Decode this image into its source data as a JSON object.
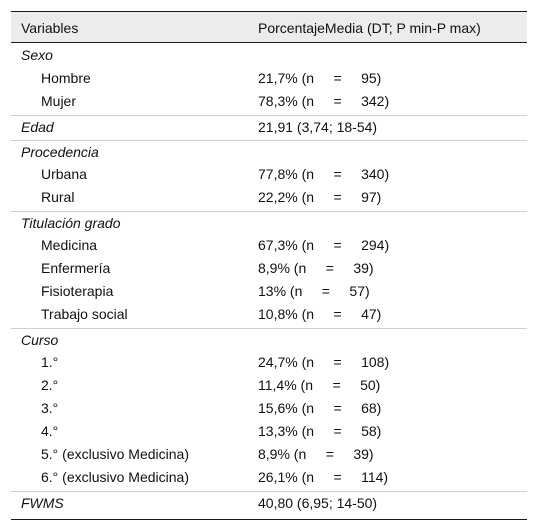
{
  "header": {
    "col1": "Variables",
    "col2": "PorcentajeMedia (DT; P min-P max)"
  },
  "rows": [
    {
      "label": "Sexo",
      "value": ""
    },
    {
      "label": "Hombre",
      "value": "21,7% (n     =     95)"
    },
    {
      "label": "Mujer",
      "value": "78,3% (n     =     342)"
    },
    {
      "label": "Edad",
      "value": "21,91 (3,74; 18-54)"
    },
    {
      "label": "Procedencia",
      "value": ""
    },
    {
      "label": "Urbana",
      "value": "77,8% (n     =     340)"
    },
    {
      "label": "Rural",
      "value": "22,2% (n     =     97)"
    },
    {
      "label": "Titulación grado",
      "value": ""
    },
    {
      "label": "Medicina",
      "value": "67,3% (n     =     294)"
    },
    {
      "label": "Enfermería",
      "value": "8,9% (n     =     39)"
    },
    {
      "label": "Fisioterapia",
      "value": "13% (n     =     57)"
    },
    {
      "label": "Trabajo social",
      "value": "10,8% (n     =     47)"
    },
    {
      "label": "Curso",
      "value": ""
    },
    {
      "label": "1.°",
      "value": "24,7% (n     =     108)"
    },
    {
      "label": "2.°",
      "value": "11,4% (n     =     50)"
    },
    {
      "label": "3.°",
      "value": "15,6% (n     =     68)"
    },
    {
      "label": "4.°",
      "value": "13,3% (n     =     58)"
    },
    {
      "label": "5.°  (exclusivo Medicina)",
      "value": "8,9% (n     =     39)"
    },
    {
      "label": "6.°  (exclusivo Medicina)",
      "value": "26,1% (n     =     114)"
    },
    {
      "label": "FWMS",
      "value": "40,80 (6,95; 14-50)"
    }
  ]
}
